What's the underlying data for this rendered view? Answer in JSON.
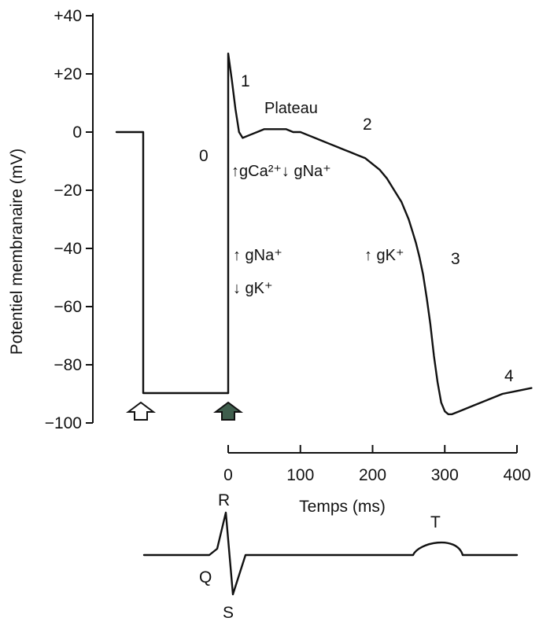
{
  "chart_data": {
    "type": "line",
    "title": "",
    "ylabel": "Potentiel membranaire (mV)",
    "xlabel": "Temps (ms)",
    "ylim": [
      -100,
      40
    ],
    "xlim": [
      0,
      400
    ],
    "y_ticks": [
      40,
      20,
      0,
      -20,
      -40,
      -60,
      -80,
      -100
    ],
    "y_tick_labels": [
      "+40",
      "+20",
      "0",
      "−20",
      "−40",
      "−60",
      "−80",
      "−100"
    ],
    "x_ticks": [
      0,
      100,
      200,
      300,
      400
    ],
    "x_tick_labels": [
      "0",
      "100",
      "200",
      "300",
      "400"
    ],
    "grid": false,
    "series": [
      {
        "x": [
          0,
          5,
          10,
          15,
          20,
          30,
          40,
          50,
          60,
          70,
          80,
          90,
          100,
          110,
          120,
          130,
          140,
          150,
          160,
          170,
          180,
          190,
          200,
          210,
          220,
          230,
          240,
          250,
          255,
          260,
          265,
          270,
          275,
          280,
          285,
          290,
          295,
          300,
          305,
          310,
          320,
          340,
          360,
          380,
          400,
          420
        ],
        "values": [
          27,
          18,
          8,
          0,
          -2,
          -1,
          0,
          1,
          1,
          1,
          1,
          0,
          0,
          -1,
          -2,
          -3,
          -4,
          -5,
          -6,
          -7,
          -8,
          -9,
          -11,
          -13,
          -16,
          -20,
          -24,
          -30,
          -34,
          -38,
          -43,
          -49,
          -57,
          -66,
          -77,
          -86,
          -93,
          -96,
          -97,
          -97,
          -96,
          -94,
          -92,
          -90,
          -89,
          -88
        ]
      }
    ],
    "annotations": {
      "phase_0": "0",
      "phase_1": "1",
      "phase_2": "2",
      "phase_3": "3",
      "phase_4": "4",
      "plateau": "Plateau",
      "plateau_conductance": "↑gCa²⁺↓ gNa⁺",
      "depol_na": "↑ gNa⁺",
      "depol_k": "↓ gK⁺",
      "repol_k": "↑ gK⁺"
    },
    "stimulus_markers": [
      "open-up-arrow-icon",
      "filled-up-arrow-icon"
    ],
    "ecg_labels": {
      "R": "R",
      "Q": "Q",
      "S": "S",
      "T": "T"
    }
  }
}
